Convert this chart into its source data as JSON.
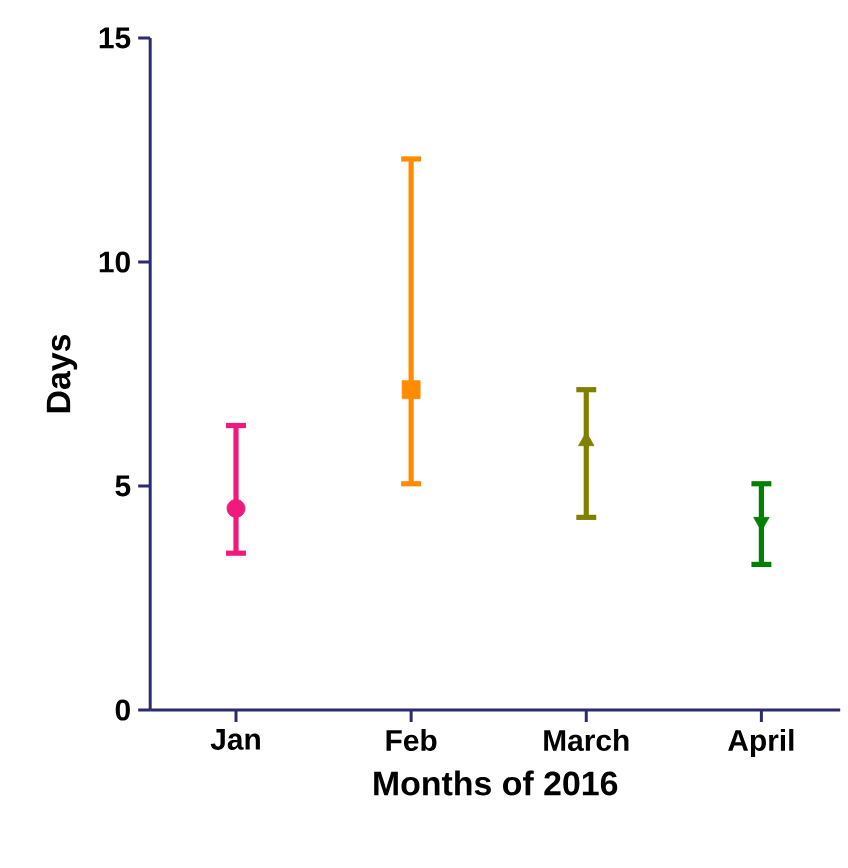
{
  "chart_data": {
    "type": "scatter",
    "xlabel": "Months of 2016",
    "ylabel": "Days",
    "categories": [
      "Jan",
      "Feb",
      "March",
      "April"
    ],
    "ylim": [
      0,
      15
    ],
    "yticks": [
      0,
      5,
      10,
      15
    ],
    "grid": false,
    "series": [
      {
        "color": "#f0197d",
        "marker": "circle",
        "values": [
          4.5,
          null,
          null,
          null
        ],
        "errors": [
          [
            3.5,
            6.35
          ],
          null,
          null,
          null
        ]
      },
      {
        "color": "#ff8c00",
        "marker": "square",
        "values": [
          null,
          7.15,
          null,
          null
        ],
        "errors": [
          null,
          [
            5.05,
            12.3
          ],
          null,
          null
        ]
      },
      {
        "color": "#808000",
        "marker": "triangle",
        "values": [
          null,
          null,
          6.0,
          null
        ],
        "errors": [
          null,
          null,
          [
            4.3,
            7.15
          ],
          null
        ]
      },
      {
        "color": "#008000",
        "marker": "triangle down",
        "values": [
          null,
          null,
          null,
          4.2
        ],
        "errors": [
          null,
          null,
          null,
          [
            3.25,
            5.05
          ]
        ]
      }
    ]
  }
}
